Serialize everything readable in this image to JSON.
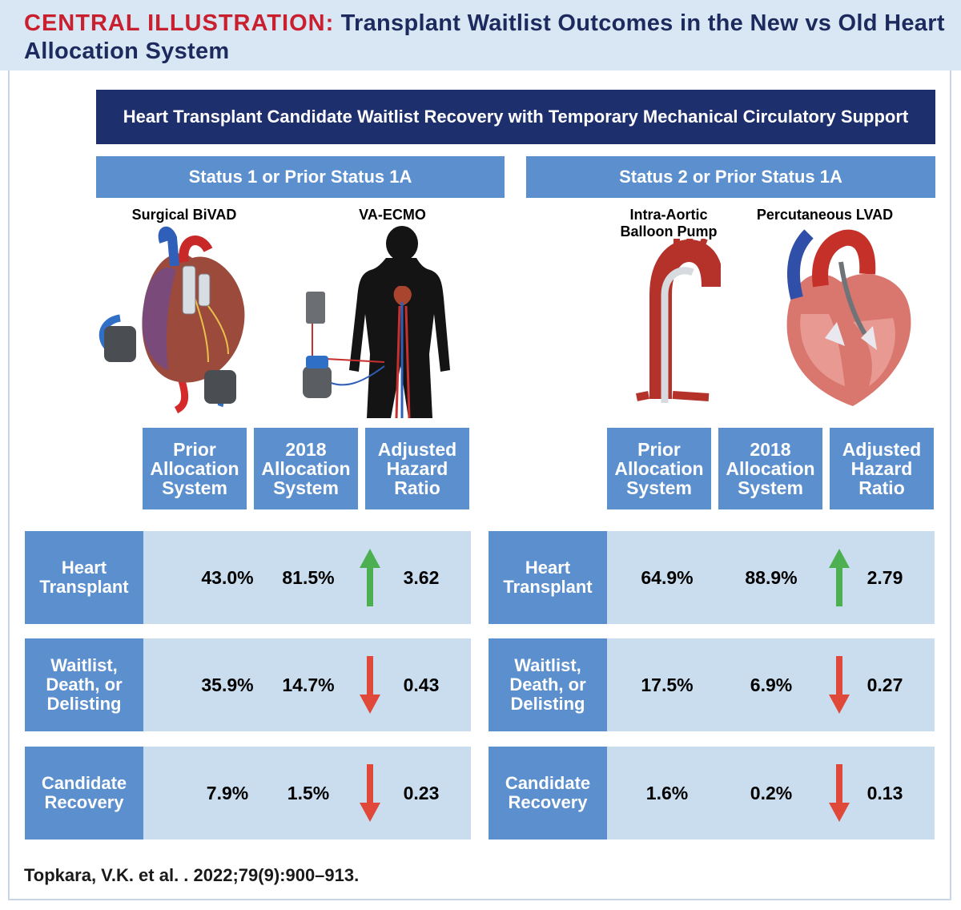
{
  "header": {
    "label": "CENTRAL ILLUSTRATION:",
    "title": "Transplant Waitlist Outcomes in the New vs Old Heart Allocation System"
  },
  "banner": "Heart Transplant Candidate Waitlist Recovery with Temporary Mechanical Circulatory Support",
  "colors": {
    "accent_red": "#c8202f",
    "navy": "#1e2f6e",
    "blue": "#5b8fce",
    "light_blue": "#c9ddef",
    "up_green": "#4caf50",
    "down_red": "#e0483a"
  },
  "panels": [
    {
      "status": "Status 1 or Prior Status 1A",
      "devices": [
        {
          "label": "Surgical BiVAD",
          "icon": "bivad-heart-illustration"
        },
        {
          "label": "VA-ECMO",
          "icon": "ecmo-body-illustration"
        }
      ],
      "columns": [
        "Prior Allocation System",
        "2018 Allocation System",
        "Adjusted Hazard Ratio"
      ],
      "rows": [
        {
          "label": "Heart Transplant",
          "prior": "43.0%",
          "new": "81.5%",
          "direction": "up",
          "hr": "3.62"
        },
        {
          "label": "Waitlist, Death, or Delisting",
          "prior": "35.9%",
          "new": "14.7%",
          "direction": "down",
          "hr": "0.43"
        },
        {
          "label": "Candidate Recovery",
          "prior": "7.9%",
          "new": "1.5%",
          "direction": "down",
          "hr": "0.23"
        }
      ]
    },
    {
      "status": "Status 2 or Prior Status 1A",
      "devices": [
        {
          "label": "Intra-Aortic Balloon Pump",
          "icon": "iabp-aorta-illustration"
        },
        {
          "label": "Percutaneous LVAD",
          "icon": "plvad-heart-illustration"
        }
      ],
      "columns": [
        "Prior Allocation System",
        "2018 Allocation System",
        "Adjusted Hazard Ratio"
      ],
      "rows": [
        {
          "label": "Heart Transplant",
          "prior": "64.9%",
          "new": "88.9%",
          "direction": "up",
          "hr": "2.79"
        },
        {
          "label": "Waitlist, Death, or Delisting",
          "prior": "17.5%",
          "new": "6.9%",
          "direction": "down",
          "hr": "0.27"
        },
        {
          "label": "Candidate Recovery",
          "prior": "1.6%",
          "new": "0.2%",
          "direction": "down",
          "hr": "0.13"
        }
      ]
    }
  ],
  "citation": "Topkara, V.K. et al. . 2022;79(9):900–913."
}
